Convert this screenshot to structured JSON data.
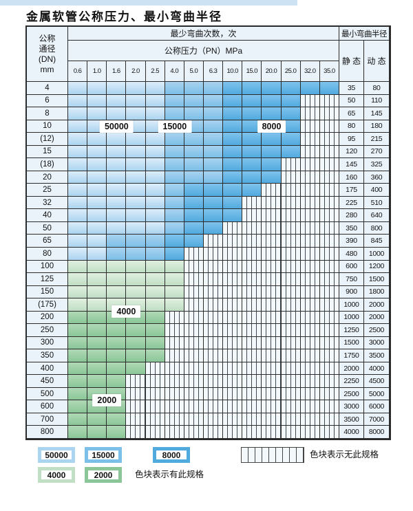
{
  "page": {
    "title": "金属软管公称压力、最小弯曲半径"
  },
  "table": {
    "header": {
      "dn_lines": [
        "公称",
        "通径",
        "(DN)",
        "mm"
      ],
      "bend_cycles": "最少弯曲次数，次",
      "pressure": "公称压力（PN）MPa",
      "bend_radius": "最小弯曲半径",
      "static": "静 态",
      "dynamic": "动 态",
      "pressures": [
        "0.6",
        "1.0",
        "1.6",
        "2.0",
        "2.5",
        "4.0",
        "5.0",
        "6.3",
        "10.0",
        "15.0",
        "20.0",
        "25.0",
        "32.0",
        "35.0"
      ]
    },
    "cell_code_legend": {
      "L": "50000次",
      "M": "15000次",
      "D": "8000次",
      "G": "4000次",
      "g": "2000次",
      "x": "无此规格"
    },
    "rows": [
      {
        "dn": "4",
        "cells": "LLLLLMMMDDDDDD",
        "static": "35",
        "dynamic": "80"
      },
      {
        "dn": "6",
        "cells": "LLLLLMMMDDDDxx",
        "static": "50",
        "dynamic": "110"
      },
      {
        "dn": "8",
        "cells": "LLLLLMMMDDDDxx",
        "static": "65",
        "dynamic": "145"
      },
      {
        "dn": "10",
        "cells": "LLLLLMMMDDDDxx",
        "static": "80",
        "dynamic": "180"
      },
      {
        "dn": "(12)",
        "cells": "LLLLLMMMDDDDxx",
        "static": "95",
        "dynamic": "215"
      },
      {
        "dn": "15",
        "cells": "LLLLLMMMDDDDxx",
        "static": "120",
        "dynamic": "270"
      },
      {
        "dn": "(18)",
        "cells": "LLLLLMMMDDDxxx",
        "static": "145",
        "dynamic": "325"
      },
      {
        "dn": "20",
        "cells": "LLLLLMMMDDDxxx",
        "static": "160",
        "dynamic": "360"
      },
      {
        "dn": "25",
        "cells": "LLLLLMDDDDxxxx",
        "static": "175",
        "dynamic": "400"
      },
      {
        "dn": "32",
        "cells": "LLLLLMDDDxxxxx",
        "static": "225",
        "dynamic": "510"
      },
      {
        "dn": "40",
        "cells": "LLLLLMDDDxxxxx",
        "static": "280",
        "dynamic": "640"
      },
      {
        "dn": "50",
        "cells": "LLLLLMDDxxxxxx",
        "static": "350",
        "dynamic": "800"
      },
      {
        "dn": "65",
        "cells": "LLMMMDDxxxxxxx",
        "static": "390",
        "dynamic": "845"
      },
      {
        "dn": "80",
        "cells": "LLMMMDxxxxxxxx",
        "static": "480",
        "dynamic": "1000"
      },
      {
        "dn": "100",
        "cells": "GGGGGGxxxxxxxx",
        "static": "600",
        "dynamic": "1200"
      },
      {
        "dn": "125",
        "cells": "GGGGGGxxxxxxxx",
        "static": "750",
        "dynamic": "1500"
      },
      {
        "dn": "150",
        "cells": "GGGGGGxxxxxxxx",
        "static": "900",
        "dynamic": "1800"
      },
      {
        "dn": "(175)",
        "cells": "GGGGGGxxxxxxxx",
        "static": "1000",
        "dynamic": "2000"
      },
      {
        "dn": "200",
        "cells": "gggggxxxxxxxxx",
        "static": "1000",
        "dynamic": "2000"
      },
      {
        "dn": "250",
        "cells": "gggggxxxxxxxxx",
        "static": "1250",
        "dynamic": "2500"
      },
      {
        "dn": "300",
        "cells": "gggggxxxxxxxxx",
        "static": "1500",
        "dynamic": "3000"
      },
      {
        "dn": "350",
        "cells": "gggggxxxxxxxxx",
        "static": "1750",
        "dynamic": "3500"
      },
      {
        "dn": "400",
        "cells": "ggggxxxxxxxxxx",
        "static": "2000",
        "dynamic": "4000"
      },
      {
        "dn": "450",
        "cells": "gggxxxxxxxxxxx",
        "static": "2250",
        "dynamic": "4500"
      },
      {
        "dn": "500",
        "cells": "gggxxxxxxxxxxx",
        "static": "2500",
        "dynamic": "5000"
      },
      {
        "dn": "600",
        "cells": "gggxxxxxxxxxxx",
        "static": "3000",
        "dynamic": "6000"
      },
      {
        "dn": "700",
        "cells": "gggxxxxxxxxxxx",
        "static": "3500",
        "dynamic": "7000"
      },
      {
        "dn": "800",
        "cells": "gggxxxxxxxxxxx",
        "static": "4000",
        "dynamic": "8000"
      }
    ],
    "region_labels": [
      {
        "text": "50000",
        "row_start": 3,
        "row_end": 3,
        "col_start": 1,
        "col_end": 3
      },
      {
        "text": "15000",
        "row_start": 3,
        "row_end": 3,
        "col_start": 4,
        "col_end": 6
      },
      {
        "text": "8000",
        "row_start": 3,
        "row_end": 3,
        "col_start": 9,
        "col_end": 11
      },
      {
        "text": "4000",
        "row_start": 17,
        "row_end": 18,
        "col_start": 2,
        "col_end": 3
      },
      {
        "text": "2000",
        "row_start": 24,
        "row_end": 25,
        "col_start": 1,
        "col_end": 2
      }
    ]
  },
  "legend": {
    "box_50000": "50000",
    "box_15000": "15000",
    "box_8000": "8000",
    "box_4000": "4000",
    "box_2000": "2000",
    "hatch_note": "色块表示无此规格",
    "color_note": "色块表示有此规格"
  },
  "colors": {
    "banner": "#cde2f2",
    "grid_line": "#2b2b2b",
    "header_bg": "#eaf3fa",
    "c50t": "#dcedfa",
    "c50b": "#abd4f0",
    "c15t": "#a9d3f0",
    "c15b": "#7cbfe8",
    "c8t": "#7fc3ed",
    "c8b": "#51aade",
    "c4t": "#e0efe0",
    "c4b": "#c0dfc4",
    "c2t": "#b0d9b6",
    "c2b": "#8ac697",
    "hatch_bg": "#f3f8fb",
    "hatch_line": "#3d4852"
  }
}
